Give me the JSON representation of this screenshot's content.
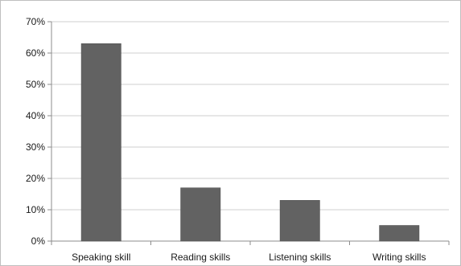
{
  "chart_data": {
    "type": "bar",
    "categories": [
      "Speaking skill",
      "Reading skills",
      "Listening skills",
      "Writing skills"
    ],
    "values": [
      63,
      17,
      13,
      5
    ],
    "value_unit": "%",
    "ylim": [
      0,
      70
    ],
    "yticks": [
      "0%",
      "10%",
      "20%",
      "30%",
      "40%",
      "50%",
      "60%",
      "70%"
    ],
    "title": "",
    "xlabel": "",
    "ylabel": "",
    "grid": true,
    "legend": "none",
    "colors": {
      "bar_fill": "#626262",
      "bar_stroke": "#4a4a4a",
      "gridline": "#cfcfcf",
      "axis": "#8c8c8c",
      "frame": "#bfbfbf"
    }
  }
}
